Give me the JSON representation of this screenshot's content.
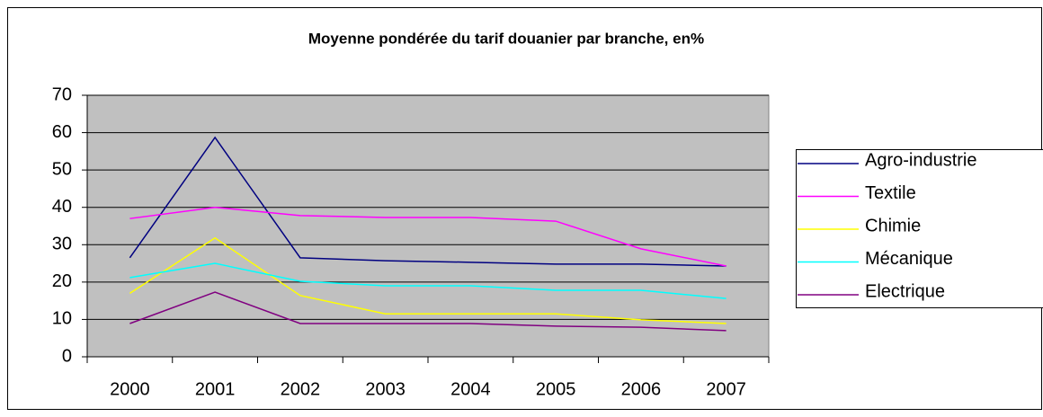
{
  "chart_data": {
    "type": "line",
    "title": "Moyenne pondérée du tarif douanier par branche, en%",
    "categories": [
      "2000",
      "2001",
      "2002",
      "2003",
      "2004",
      "2005",
      "2006",
      "2007"
    ],
    "series": [
      {
        "name": "Agro-industrie",
        "color": "#000080",
        "values": [
          26.5,
          58.7,
          26.5,
          25.7,
          25.3,
          24.8,
          24.8,
          24.3
        ]
      },
      {
        "name": "Textile",
        "color": "#ff00ff",
        "values": [
          37.0,
          40.0,
          37.8,
          37.3,
          37.3,
          36.3,
          28.9,
          24.3
        ]
      },
      {
        "name": "Chimie",
        "color": "#ffff00",
        "values": [
          17.0,
          31.8,
          16.4,
          11.5,
          11.5,
          11.5,
          9.9,
          8.9
        ]
      },
      {
        "name": "Mécanique",
        "color": "#00ffff",
        "values": [
          21.2,
          25.0,
          20.2,
          19.0,
          19.0,
          17.8,
          17.8,
          15.6
        ]
      },
      {
        "name": "Electrique",
        "color": "#800080",
        "values": [
          8.9,
          17.3,
          8.9,
          8.9,
          8.9,
          8.2,
          7.9,
          7.0
        ]
      }
    ],
    "ylim": [
      0,
      70
    ],
    "yticks": [
      0,
      10,
      20,
      30,
      40,
      50,
      60,
      70
    ],
    "grid": true,
    "legend": "right"
  }
}
